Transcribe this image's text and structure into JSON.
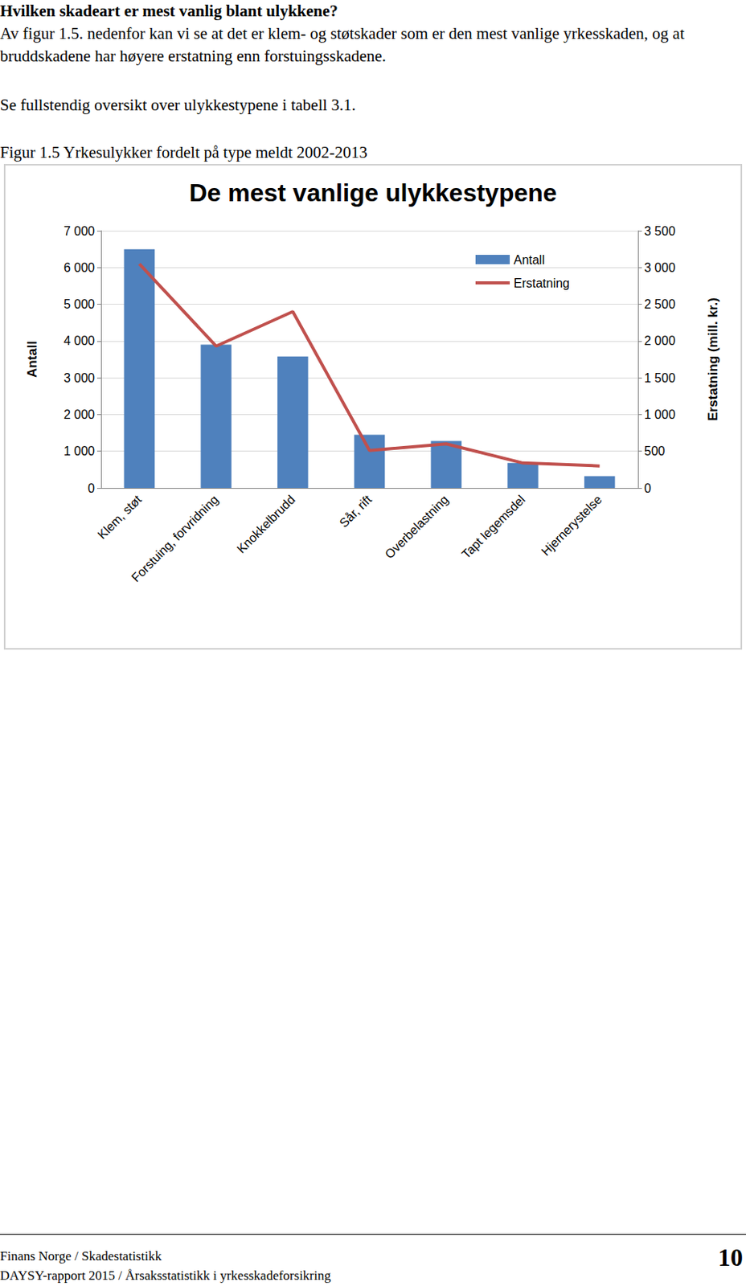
{
  "heading": "Hvilken skadeart er mest vanlig blant ulykkene?",
  "paragraphs": [
    "Av figur 1.5. nedenfor kan vi se at det er klem- og støtskader som er den mest vanlige yrkesskaden, og at bruddskadene har høyere erstatning enn forstuingsskadene.",
    "Se fullstendig oversikt over ulykkestypene i tabell 3.1."
  ],
  "figure_caption": "Figur 1.5 Yrkesulykker fordelt på type meldt 2002-2013",
  "chart_data": {
    "type": "bar",
    "title": "De mest vanlige ulykkestypene",
    "categories": [
      "Klem, støt",
      "Forstuing, forvridning",
      "Knokkelbrudd",
      "Sår, rift",
      "Overbelastning",
      "Tapt legemsdel",
      "Hjernerystelse"
    ],
    "series": [
      {
        "name": "Antall",
        "type": "bar",
        "color": "#4f81bd",
        "values": [
          6500,
          3900,
          3580,
          1450,
          1280,
          680,
          320
        ]
      },
      {
        "name": "Erstatning",
        "type": "line",
        "color": "#c0504d",
        "marker": "none",
        "axis": "y2",
        "values": [
          3050,
          1930,
          2400,
          510,
          600,
          340,
          300
        ]
      }
    ],
    "ylabel": "Antall",
    "y2label": "Erstatning (mill. kr.)",
    "ylim": [
      0,
      7000
    ],
    "yticks": [
      0,
      {
        "value": 1000,
        "label": "1 000"
      },
      {
        "value": 2000,
        "label": "2 000"
      },
      {
        "value": 3000,
        "label": "3 000"
      },
      {
        "value": 4000,
        "label": "4 000"
      },
      {
        "value": 5000,
        "label": "5 000"
      },
      {
        "value": 6000,
        "label": "6 000"
      },
      {
        "value": 7000,
        "label": "7 000"
      }
    ],
    "y2lim": [
      0,
      3500
    ],
    "y2ticks": [
      0,
      500,
      {
        "value": 1000,
        "label": "1 000"
      },
      {
        "value": 1500,
        "label": "1 500"
      },
      {
        "value": 2000,
        "label": "2 000"
      },
      {
        "value": 2500,
        "label": "2 500"
      },
      {
        "value": 3000,
        "label": "3 000"
      },
      {
        "value": 3500,
        "label": "3 500"
      }
    ],
    "grid": true,
    "legend": "upper right"
  },
  "footer": {
    "lines": [
      "Finans Norge / Skadestatistikk",
      "DAYSY-rapport 2015 / Årsaksstatistikk i yrkesskadeforsikring"
    ],
    "page": "10"
  }
}
